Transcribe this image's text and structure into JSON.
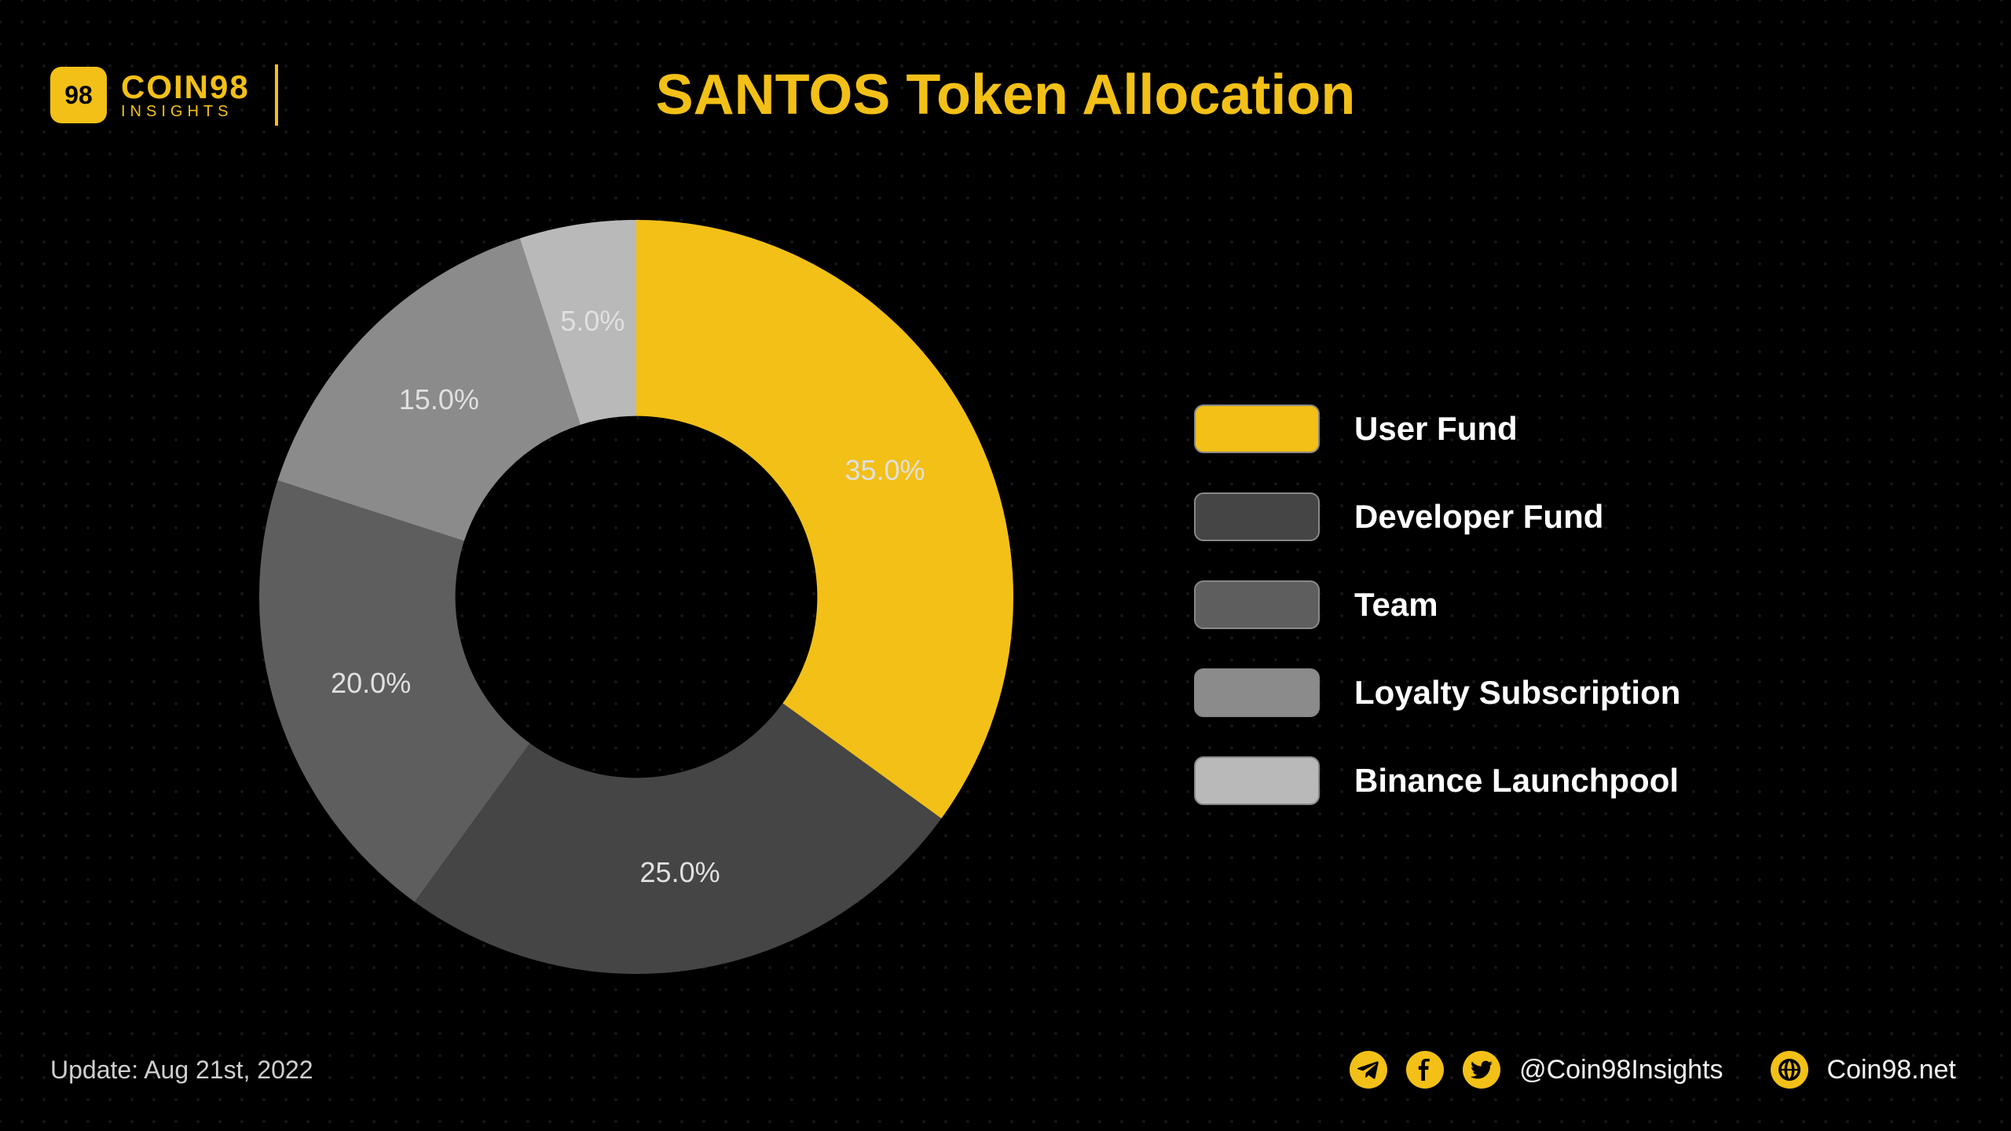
{
  "brand": {
    "badge_text": "98",
    "name_top": "COIN98",
    "name_bottom": "INSIGHTS",
    "badge_bg": "#f2c017",
    "text_color": "#f2c017"
  },
  "title": {
    "text": "SANTOS Token Allocation",
    "color": "#f2c017",
    "fontsize": 72
  },
  "chart": {
    "type": "donut",
    "inner_radius_pct": 48,
    "outer_radius_pct": 100,
    "background_color": "#000000",
    "label_color": "#e0e0e0",
    "label_fontsize": 36,
    "slices": [
      {
        "label": "User Fund",
        "value": 35.0,
        "display": "35.0%",
        "color": "#f2c017"
      },
      {
        "label": "Developer Fund",
        "value": 25.0,
        "display": "25.0%",
        "color": "#454545"
      },
      {
        "label": "Team",
        "value": 20.0,
        "display": "20.0%",
        "color": "#5e5e5e"
      },
      {
        "label": "Loyalty Subscription",
        "value": 15.0,
        "display": "15.0%",
        "color": "#8b8b8b"
      },
      {
        "label": "Binance Launchpool",
        "value": 5.0,
        "display": "5.0%",
        "color": "#b9b9b9"
      }
    ]
  },
  "legend": {
    "swatch_border": "#888888",
    "label_color": "#ffffff",
    "label_fontsize": 42
  },
  "footer": {
    "update_text": "Update: Aug 21st, 2022",
    "handle": "@Coin98Insights",
    "site": "Coin98.net",
    "icon_bg": "#f2c017"
  }
}
